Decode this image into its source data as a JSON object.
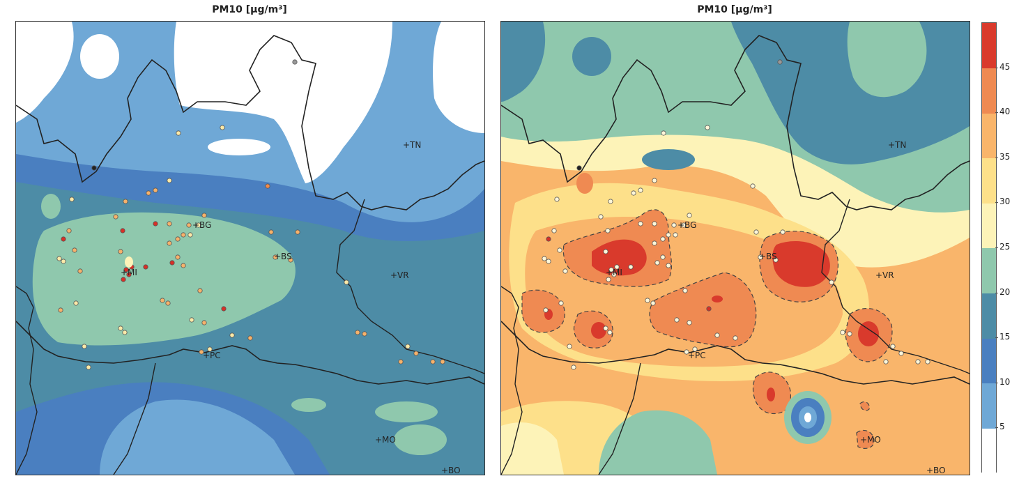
{
  "panels": {
    "left": {
      "title": "PM10 [μg/m³]"
    },
    "right": {
      "title": "PM10 [μg/m³]"
    }
  },
  "cities": {
    "TN": "+TN",
    "BG": "+BG",
    "BS": "+BS",
    "MI": "+MI",
    "VR": "+VR",
    "PC": "+PC",
    "MO": "+MO",
    "BO": "+BO"
  },
  "colorbar": {
    "ticks": [
      "5",
      "10",
      "15",
      "20",
      "25",
      "30",
      "35",
      "40",
      "45"
    ],
    "colors": [
      "#ffffff",
      "#6fa8d6",
      "#4a7fc0",
      "#4d8ca6",
      "#8fc8ad",
      "#fdf3b8",
      "#fde08a",
      "#f9b56b",
      "#ef8a52",
      "#d93a2c"
    ],
    "min": 0,
    "max": 50
  },
  "palette": {
    "white": "#ffffff",
    "light_blue": "#6fa8d6",
    "mid_blue": "#4a7fc0",
    "teal": "#4d8ca6",
    "light_teal": "#8fc8ad",
    "cream": "#fdf3b8",
    "yellow": "#fde08a",
    "orange": "#f9b56b",
    "dark_orange": "#ef8a52",
    "red": "#d93a2c"
  }
}
